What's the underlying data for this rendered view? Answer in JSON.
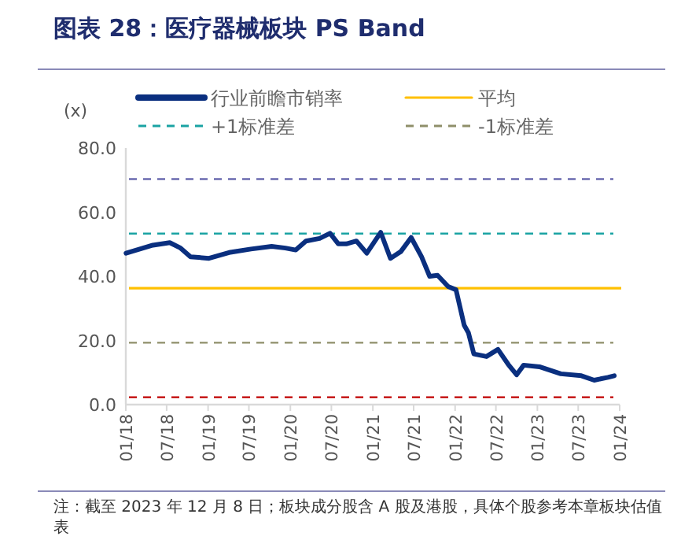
{
  "chart_data": {
    "type": "line",
    "title": "图表 28：医疗器械板块 PS Band",
    "ylabel": "(x)",
    "x": [
      "2018-01-02",
      "2018-05-01",
      "2018-07-15",
      "2018-09-01",
      "2018-10-15",
      "2019-01-05",
      "2019-04-10",
      "2019-07-10",
      "2019-10-10",
      "2019-12-10",
      "2020-01-25",
      "2020-03-10",
      "2020-05-10",
      "2020-06-25",
      "2020-08-01",
      "2020-09-05",
      "2020-10-20",
      "2020-12-05",
      "2021-02-05",
      "2021-03-20",
      "2021-05-05",
      "2021-06-20",
      "2021-08-05",
      "2021-09-10",
      "2021-10-15",
      "2021-12-01",
      "2022-01-05",
      "2022-02-10",
      "2022-03-01",
      "2022-03-25",
      "2022-05-20",
      "2022-07-10",
      "2022-08-25",
      "2022-10-01",
      "2022-11-01",
      "2023-01-10",
      "2023-04-15",
      "2023-07-15",
      "2023-09-10",
      "2023-11-10",
      "2023-12-08"
    ],
    "series": [
      {
        "name": "行业前瞻市销率",
        "color": "#0a2f7f",
        "values": [
          47.2,
          49.7,
          50.5,
          48.8,
          46.1,
          45.6,
          47.5,
          48.5,
          49.3,
          48.8,
          48.2,
          51.0,
          51.8,
          53.4,
          50.1,
          50.1,
          51.0,
          47.2,
          53.7,
          45.6,
          47.7,
          52.1,
          46.1,
          40.0,
          40.3,
          36.8,
          35.8,
          24.8,
          22.4,
          15.8,
          15.0,
          17.2,
          12.5,
          9.3,
          12.3,
          11.8,
          9.6,
          9.0,
          7.6,
          8.5,
          9.0
        ]
      }
    ],
    "ref_lines": [
      {
        "axis": "y",
        "value": 70.3,
        "color": "#6b6bb0",
        "line_style": "dashed"
      },
      {
        "axis": "y",
        "value": 53.3,
        "label": "+1标准差",
        "color": "#1aa3a3",
        "line_style": "dashed"
      },
      {
        "axis": "y",
        "value": 36.3,
        "label": "平均",
        "color": "#ffc000",
        "line_style": "solid"
      },
      {
        "axis": "y",
        "value": 19.3,
        "label": "-1标准差",
        "color": "#8f8f6a",
        "line_style": "dashed"
      },
      {
        "axis": "y",
        "value": 2.3,
        "color": "#c00000",
        "line_style": "dashed"
      }
    ],
    "xlim": [
      "2018-01-01",
      "2024-01-01"
    ],
    "xticks": [
      {
        "value": "2018-01-01",
        "label": "01/18"
      },
      {
        "value": "2018-07-01",
        "label": "07/18"
      },
      {
        "value": "2019-01-01",
        "label": "01/19"
      },
      {
        "value": "2019-07-01",
        "label": "07/19"
      },
      {
        "value": "2020-01-01",
        "label": "01/20"
      },
      {
        "value": "2020-07-01",
        "label": "07/20"
      },
      {
        "value": "2021-01-01",
        "label": "01/21"
      },
      {
        "value": "2021-07-01",
        "label": "07/21"
      },
      {
        "value": "2022-01-01",
        "label": "01/22"
      },
      {
        "value": "2022-07-01",
        "label": "07/22"
      },
      {
        "value": "2023-01-01",
        "label": "01/23"
      },
      {
        "value": "2023-07-01",
        "label": "07/23"
      },
      {
        "value": "2024-01-01",
        "label": "01/24"
      }
    ],
    "ylim": [
      0,
      80
    ],
    "yticks": [
      {
        "value": 0,
        "label": "0.0"
      },
      {
        "value": 20,
        "label": "20.0"
      },
      {
        "value": 40,
        "label": "40.0"
      },
      {
        "value": 60,
        "label": "60.0"
      },
      {
        "value": 80,
        "label": "80.0"
      }
    ],
    "legend": "top",
    "grid": false,
    "marker": "none",
    "line_style": "solid",
    "annotations": [
      "注：截至 2023 年 12 月 8 日；板块成分股含 A 股及港股，具体个股参考本章板块估值表"
    ]
  }
}
